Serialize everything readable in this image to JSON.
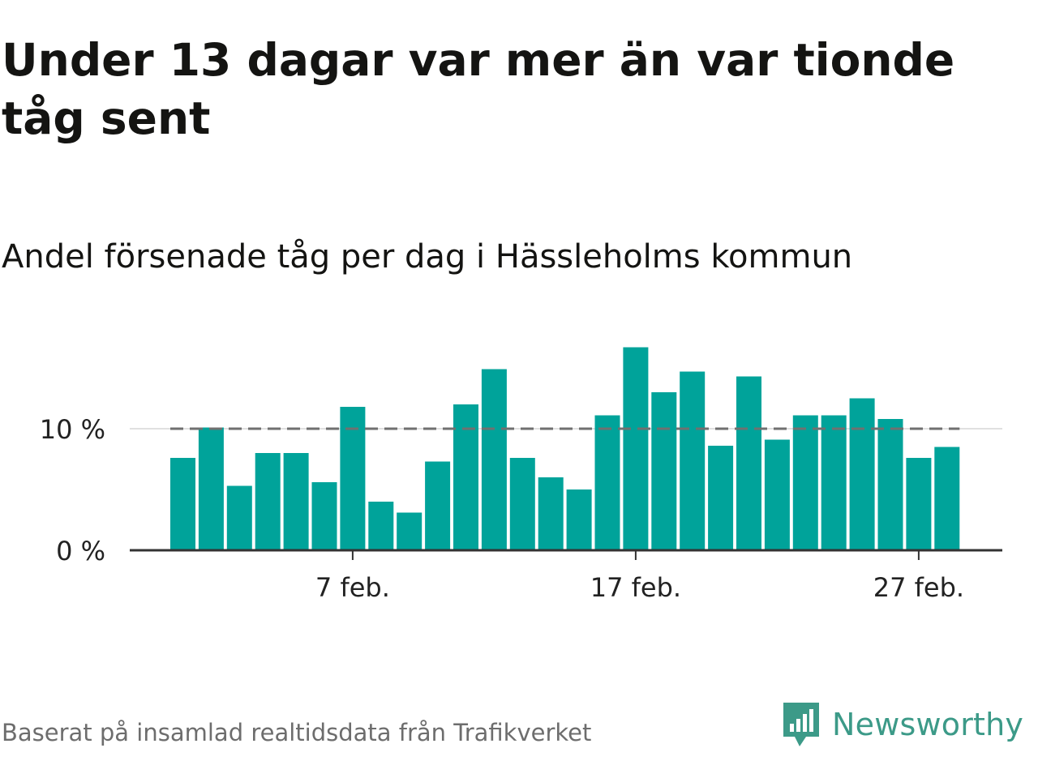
{
  "header": {
    "title": "Under 13 dagar var mer än var tionde tåg sent",
    "subtitle": "Andel försenade tåg per dag i Hässleholms kommun"
  },
  "footer": {
    "source": "Baserat på insamlad realtidsdata från Trafikverket",
    "brand": "Newsworthy"
  },
  "colors": {
    "bar": "#00a39a",
    "reference_line": "#707070",
    "gridline": "#e0e0e0",
    "axis": "#333333",
    "brand": "#3c9a88"
  },
  "chart_data": {
    "type": "bar",
    "x_start_day": 1,
    "x": [
      1,
      2,
      3,
      4,
      5,
      6,
      7,
      8,
      9,
      10,
      11,
      12,
      13,
      14,
      15,
      16,
      17,
      18,
      19,
      20,
      21,
      22,
      23,
      24,
      25,
      26,
      27,
      28
    ],
    "values": [
      7.6,
      10.1,
      5.3,
      8.0,
      8.0,
      5.6,
      11.8,
      4.0,
      3.1,
      7.3,
      12.0,
      14.9,
      7.6,
      6.0,
      5.0,
      11.1,
      16.7,
      13.0,
      14.7,
      8.6,
      14.3,
      9.1,
      11.1,
      11.1,
      12.5,
      10.8,
      7.6,
      8.5
    ],
    "ylim": [
      0,
      18
    ],
    "yticks": [
      {
        "value": 0,
        "label": "0 %"
      },
      {
        "value": 10,
        "label": "10 %"
      }
    ],
    "xticks": [
      {
        "value": 7,
        "label": "7 feb."
      },
      {
        "value": 17,
        "label": "17 feb."
      },
      {
        "value": 27,
        "label": "27 feb."
      }
    ],
    "reference_line": {
      "value": 10,
      "style": "dashed"
    },
    "grid": true,
    "legend": false
  }
}
